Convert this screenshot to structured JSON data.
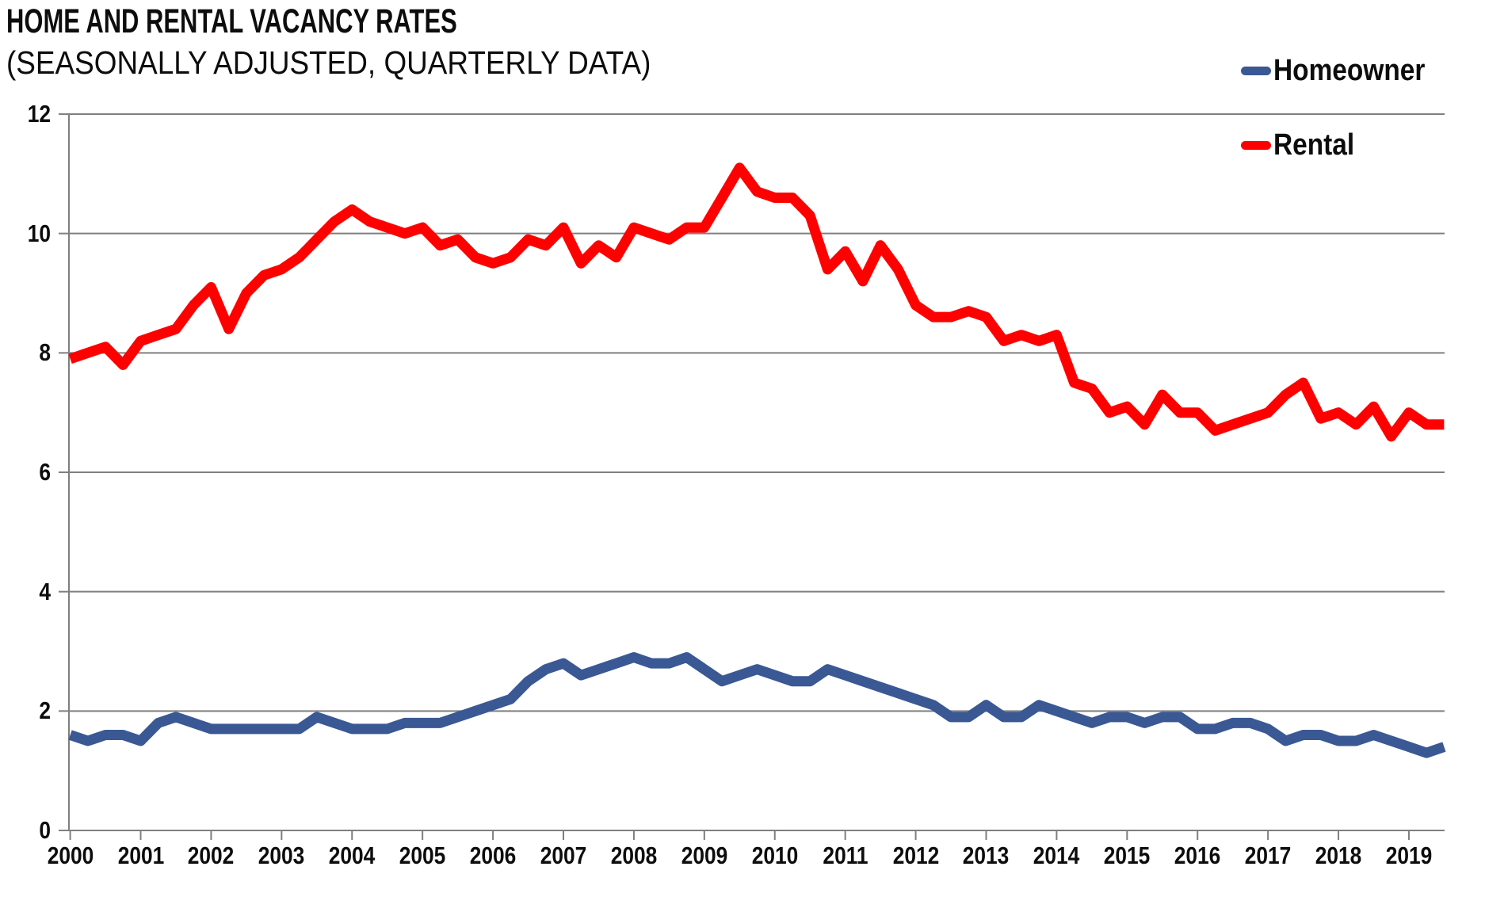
{
  "chart_data": {
    "type": "line",
    "title": "HOME AND RENTAL VACANCY RATES",
    "subtitle": "(SEASONALLY ADJUSTED, QUARTERLY DATA)",
    "x_frequency": "quarterly",
    "x_range": "2000 Q1 - 2019 Q3",
    "x_tick_labels": [
      "2000",
      "2001",
      "2002",
      "2003",
      "2004",
      "2005",
      "2006",
      "2007",
      "2008",
      "2009",
      "2010",
      "2011",
      "2012",
      "2013",
      "2014",
      "2015",
      "2016",
      "2017",
      "2018",
      "2019"
    ],
    "y_ticks": [
      0,
      2,
      4,
      6,
      8,
      10,
      12
    ],
    "ylim": [
      0,
      12
    ],
    "grid": "horizontal",
    "legend_position": "top-right",
    "series": [
      {
        "name": "Homeowner",
        "color": "#3A5894",
        "values": [
          1.6,
          1.5,
          1.6,
          1.6,
          1.5,
          1.8,
          1.9,
          1.8,
          1.7,
          1.7,
          1.7,
          1.7,
          1.7,
          1.7,
          1.9,
          1.8,
          1.7,
          1.7,
          1.7,
          1.8,
          1.8,
          1.8,
          1.9,
          2.0,
          2.1,
          2.2,
          2.5,
          2.7,
          2.8,
          2.6,
          2.7,
          2.8,
          2.9,
          2.8,
          2.8,
          2.9,
          2.7,
          2.5,
          2.6,
          2.7,
          2.6,
          2.5,
          2.5,
          2.7,
          2.6,
          2.5,
          2.4,
          2.3,
          2.2,
          2.1,
          1.9,
          1.9,
          2.1,
          1.9,
          1.9,
          2.1,
          2.0,
          1.9,
          1.8,
          1.9,
          1.9,
          1.8,
          1.9,
          1.9,
          1.7,
          1.7,
          1.8,
          1.8,
          1.7,
          1.5,
          1.6,
          1.6,
          1.5,
          1.5,
          1.6,
          1.5,
          1.4,
          1.3,
          1.4
        ]
      },
      {
        "name": "Rental",
        "color": "#FF0000",
        "values": [
          7.9,
          8.0,
          8.1,
          7.8,
          8.2,
          8.3,
          8.4,
          8.8,
          9.1,
          8.4,
          9.0,
          9.3,
          9.4,
          9.6,
          9.9,
          10.2,
          10.4,
          10.2,
          10.1,
          10.0,
          10.1,
          9.8,
          9.9,
          9.6,
          9.5,
          9.6,
          9.9,
          9.8,
          10.1,
          9.5,
          9.8,
          9.6,
          10.1,
          10.0,
          9.9,
          10.1,
          10.1,
          10.6,
          11.1,
          10.7,
          10.6,
          10.6,
          10.3,
          9.4,
          9.7,
          9.2,
          9.8,
          9.4,
          8.8,
          8.6,
          8.6,
          8.7,
          8.6,
          8.2,
          8.3,
          8.2,
          8.3,
          7.5,
          7.4,
          7.0,
          7.1,
          6.8,
          7.3,
          7.0,
          7.0,
          6.7,
          6.8,
          6.9,
          7.0,
          7.3,
          7.5,
          6.9,
          7.0,
          6.8,
          7.1,
          6.6,
          7.0,
          6.8,
          6.8
        ]
      }
    ]
  },
  "legend": {
    "items": [
      {
        "label": "Homeowner",
        "color": "#3A5894"
      },
      {
        "label": "Rental",
        "color": "#FF0000"
      }
    ]
  },
  "colors": {
    "gridline": "#7F7F7F",
    "text": "#0d0d0d",
    "background": "#FFFFFF"
  }
}
